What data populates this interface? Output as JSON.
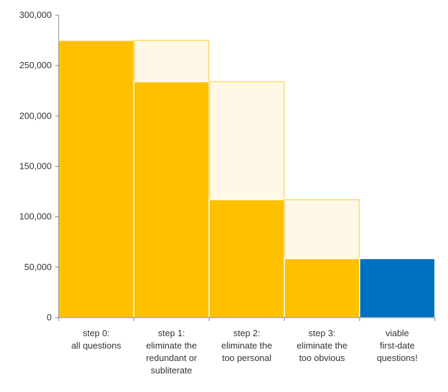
{
  "chart_data": {
    "type": "bar",
    "subtype": "waterfall",
    "title": "",
    "xlabel": "",
    "ylabel": "",
    "ylim": [
      0,
      300000
    ],
    "yticks": [
      0,
      50000,
      100000,
      150000,
      200000,
      250000,
      300000
    ],
    "ytick_labels": [
      "0",
      "50,000",
      "100,000",
      "150,000",
      "200,000",
      "250,000",
      "300,000"
    ],
    "grid": false,
    "legend": "none",
    "categories": [
      [
        "step 0:",
        "all questions"
      ],
      [
        "step 1:",
        "eliminate the",
        "redundant or",
        "subliterate"
      ],
      [
        "step 2:",
        "eliminate the",
        "too personal"
      ],
      [
        "step 3:",
        "eliminate the",
        "too obvious"
      ],
      [
        "viable",
        "first-date",
        "questions!"
      ]
    ],
    "series": [
      {
        "role": "remaining",
        "values": [
          275000,
          234000,
          117000,
          58500,
          58500
        ]
      },
      {
        "role": "eliminated",
        "values": [
          0,
          41000,
          117000,
          58500,
          0
        ]
      }
    ],
    "colors": {
      "remaining": "#FFC000",
      "eliminated_fill": "#FFF8E6",
      "eliminated_border": "#FFD966",
      "final": "#0070C0",
      "axis": "#808080",
      "bar_border": "#ffffff"
    }
  }
}
